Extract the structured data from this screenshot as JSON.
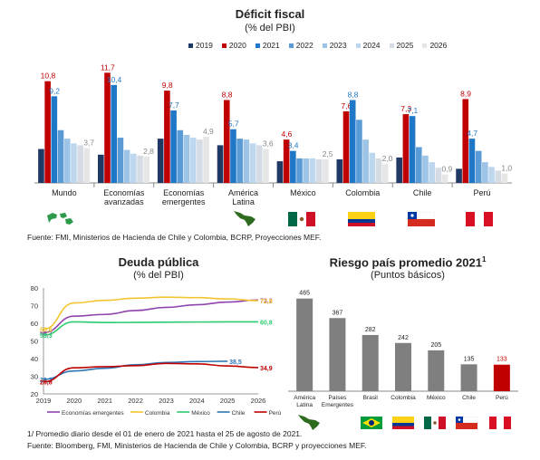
{
  "deficit": {
    "title": "Déficit fiscal",
    "subtitle": "(% del PBI)",
    "source": "Fuente: FMI, Ministerios de Hacienda de Chile y Colombia, BCRP, Proyecciones MEF.",
    "flags": [
      "globe-icon",
      "latam-map-icon",
      "mexico-flag-icon",
      "colombia-flag-icon",
      "chile-flag-icon",
      "peru-flag-icon"
    ]
  },
  "deuda": {
    "title": "Deuda pública",
    "subtitle": "(% del PBI)"
  },
  "riesgo": {
    "title": "Riesgo país promedio 2021",
    "title_sup": "1",
    "subtitle": "(Puntos básicos)",
    "flags": [
      "latam-map-icon",
      "brazil-flag-icon",
      "colombia-flag-icon",
      "mexico-flag-icon",
      "chile-flag-icon",
      "peru-flag-icon"
    ]
  },
  "footnote": "1/ Promedio diario desde el 01 de enero de 2021 hasta el 25 de agosto de 2021.",
  "source2": "Fuente: Bloomberg, FMI, Ministerios de Hacienda de Chile y Colombia, BCRP y proyecciones MEF.",
  "chart_data": [
    {
      "type": "bar",
      "categories": [
        "Mundo",
        "Economías avanzadas",
        "Economías emergentes",
        "América Latina",
        "México",
        "Colombia",
        "Chile",
        "Perú"
      ],
      "category_lines": [
        [
          "Mundo"
        ],
        [
          "Economías",
          "avanzadas"
        ],
        [
          "Economías",
          "emergentes"
        ],
        [
          "América",
          "Latina"
        ],
        [
          "México"
        ],
        [
          "Colombia"
        ],
        [
          "Chile"
        ],
        [
          "Perú"
        ]
      ],
      "series": [
        {
          "name": "2019",
          "color": "#1f3864",
          "values": [
            3.6,
            3.0,
            4.7,
            4.0,
            2.3,
            2.5,
            2.7,
            1.5
          ]
        },
        {
          "name": "2020",
          "color": "#c00000",
          "values": [
            10.8,
            11.7,
            9.8,
            8.8,
            4.6,
            7.6,
            7.3,
            8.9
          ]
        },
        {
          "name": "2021",
          "color": "#1f77c8",
          "values": [
            9.2,
            10.4,
            7.7,
            5.7,
            3.4,
            8.8,
            7.1,
            4.7
          ]
        },
        {
          "name": "2022",
          "color": "#5b9bd5",
          "values": [
            5.6,
            4.8,
            5.6,
            4.7,
            2.6,
            6.7,
            3.8,
            3.4
          ]
        },
        {
          "name": "2023",
          "color": "#9dc3e6",
          "values": [
            4.7,
            3.5,
            5.1,
            4.6,
            2.6,
            4.6,
            2.9,
            2.2
          ]
        },
        {
          "name": "2024",
          "color": "#bdd7ee",
          "values": [
            4.2,
            3.1,
            4.8,
            4.2,
            2.6,
            3.2,
            2.2,
            1.7
          ]
        },
        {
          "name": "2025",
          "color": "#d6dce4",
          "values": [
            4.0,
            2.9,
            4.6,
            4.0,
            2.5,
            2.6,
            1.6,
            1.3
          ]
        },
        {
          "name": "2026",
          "color": "#e7e6e6",
          "values": [
            3.7,
            2.8,
            4.9,
            3.6,
            2.5,
            2.0,
            0.9,
            1.0
          ]
        }
      ],
      "labels": [
        {
          "series": "2020",
          "values": [
            "10,8",
            "11,7",
            "9,8",
            "8,8",
            "4,6",
            "7,6",
            "7,3",
            "8,9"
          ]
        },
        {
          "series": "2021",
          "values": [
            "9,2",
            "10,4",
            "7,7",
            "5,7",
            "3,4",
            "8,8",
            "7,1",
            "4,7"
          ]
        },
        {
          "series": "2026",
          "values": [
            "3,7",
            "2,8",
            "4,9",
            "3,6",
            "2,5",
            "2,0",
            "0,9",
            "1,0"
          ]
        }
      ],
      "ylim": [
        0,
        12.5
      ]
    },
    {
      "type": "line",
      "x": [
        "2019",
        "2020",
        "2021",
        "2022",
        "2023",
        "2024",
        "2025",
        "2026"
      ],
      "ylim": [
        20,
        80
      ],
      "yticks": [
        20,
        30,
        40,
        50,
        60,
        70,
        80
      ],
      "series": [
        {
          "name": "Economías emergentes",
          "color": "#8e44ad",
          "values": [
            54.7,
            64.0,
            65.0,
            67.2,
            69.0,
            70.5,
            72.0,
            73.2
          ],
          "start_label": "54,7",
          "end_label": "73,2"
        },
        {
          "name": "Colombia",
          "color": "#f4c430",
          "values": [
            56.6,
            71.5,
            73.0,
            74.2,
            74.8,
            74.5,
            73.8,
            72.8
          ],
          "start_label": "56,6",
          "end_label": "72,8"
        },
        {
          "name": "México",
          "color": "#2ecc71",
          "values": [
            53.3,
            60.8,
            60.4,
            60.5,
            60.6,
            60.7,
            60.8,
            60.8
          ],
          "start_label": "53,3",
          "end_label": "60,8"
        },
        {
          "name": "Chile",
          "color": "#2e75b6",
          "values": [
            28.2,
            33.0,
            34.5,
            36.5,
            37.8,
            38.3,
            38.5,
            null
          ],
          "start_label": "28,2",
          "end_label": "38,5"
        },
        {
          "name": "Perú",
          "color": "#c00000",
          "values": [
            26.8,
            34.8,
            35.4,
            36.0,
            37.3,
            37.0,
            35.8,
            34.9
          ],
          "start_label": "26,8",
          "end_label": "34,9"
        }
      ]
    },
    {
      "type": "bar",
      "categories": [
        "América Latina",
        "Países Emergentes",
        "Brasil",
        "Colombia",
        "México",
        "Chile",
        "Perú"
      ],
      "category_lines": [
        [
          "América",
          "Latina"
        ],
        [
          "Países",
          "Emergentes"
        ],
        [
          "Brasil"
        ],
        [
          "Colombia"
        ],
        [
          "México"
        ],
        [
          "Chile"
        ],
        [
          "Perú"
        ]
      ],
      "values": [
        465,
        367,
        282,
        242,
        205,
        135,
        133
      ],
      "colors": [
        "#7f7f7f",
        "#7f7f7f",
        "#7f7f7f",
        "#7f7f7f",
        "#7f7f7f",
        "#7f7f7f",
        "#c00000"
      ],
      "ylim": [
        0,
        500
      ]
    }
  ]
}
